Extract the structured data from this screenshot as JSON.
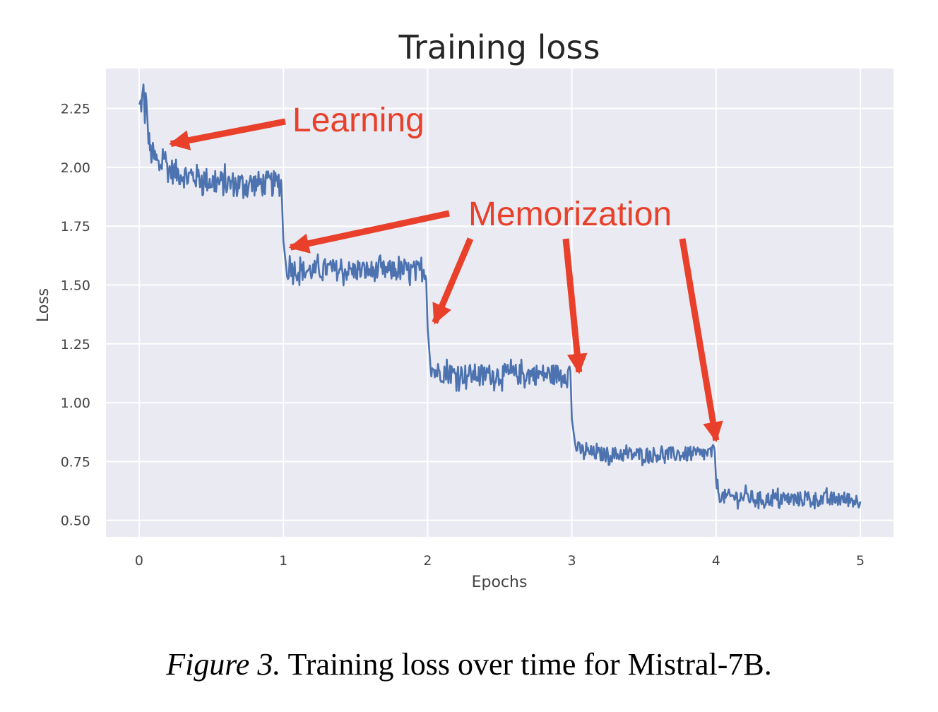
{
  "chart_data": {
    "type": "line",
    "title": "Training loss",
    "xlabel": "Epochs",
    "ylabel": "Loss",
    "xlim": [
      -0.23,
      5.23
    ],
    "ylim": [
      0.43,
      2.42
    ],
    "xticks": [
      0,
      1,
      2,
      3,
      4,
      5
    ],
    "yticks": [
      0.5,
      0.75,
      1.0,
      1.25,
      1.5,
      1.75,
      2.0,
      2.25
    ],
    "xtick_labels": [
      "0",
      "1",
      "2",
      "3",
      "4",
      "5"
    ],
    "ytick_labels": [
      "0.50",
      "0.75",
      "1.00",
      "1.25",
      "1.50",
      "1.75",
      "2.00",
      "2.25"
    ],
    "grid": true,
    "series": [
      {
        "color": "#4c72b0",
        "points": [
          [
            0.0,
            2.25
          ],
          [
            0.02,
            2.28
          ],
          [
            0.03,
            2.32
          ],
          [
            0.04,
            2.22
          ],
          [
            0.05,
            2.33
          ],
          [
            0.06,
            2.15
          ],
          [
            0.07,
            2.1
          ],
          [
            0.08,
            2.06
          ],
          [
            0.1,
            2.05
          ],
          [
            0.12,
            2.02
          ],
          [
            0.14,
            2.0
          ],
          [
            0.17,
            2.06
          ],
          [
            0.2,
            1.99
          ],
          [
            0.25,
            1.98
          ],
          [
            0.3,
            1.97
          ],
          [
            0.35,
            1.96
          ],
          [
            0.4,
            1.96
          ],
          [
            0.45,
            1.95
          ],
          [
            0.5,
            1.94
          ],
          [
            0.6,
            1.93
          ],
          [
            0.7,
            1.93
          ],
          [
            0.8,
            1.93
          ],
          [
            0.9,
            1.93
          ],
          [
            0.99,
            1.93
          ],
          [
            1.0,
            1.68
          ],
          [
            1.02,
            1.55
          ],
          [
            1.05,
            1.58
          ],
          [
            1.1,
            1.56
          ],
          [
            1.2,
            1.56
          ],
          [
            1.3,
            1.57
          ],
          [
            1.4,
            1.56
          ],
          [
            1.5,
            1.56
          ],
          [
            1.6,
            1.56
          ],
          [
            1.7,
            1.56
          ],
          [
            1.8,
            1.56
          ],
          [
            1.9,
            1.56
          ],
          [
            1.99,
            1.56
          ],
          [
            2.0,
            1.33
          ],
          [
            2.02,
            1.16
          ],
          [
            2.05,
            1.13
          ],
          [
            2.1,
            1.13
          ],
          [
            2.2,
            1.12
          ],
          [
            2.3,
            1.12
          ],
          [
            2.4,
            1.12
          ],
          [
            2.5,
            1.12
          ],
          [
            2.6,
            1.12
          ],
          [
            2.7,
            1.12
          ],
          [
            2.8,
            1.12
          ],
          [
            2.9,
            1.12
          ],
          [
            2.99,
            1.13
          ],
          [
            3.0,
            0.95
          ],
          [
            3.02,
            0.82
          ],
          [
            3.05,
            0.8
          ],
          [
            3.1,
            0.79
          ],
          [
            3.2,
            0.78
          ],
          [
            3.3,
            0.78
          ],
          [
            3.4,
            0.78
          ],
          [
            3.5,
            0.78
          ],
          [
            3.6,
            0.78
          ],
          [
            3.7,
            0.78
          ],
          [
            3.8,
            0.78
          ],
          [
            3.9,
            0.78
          ],
          [
            3.99,
            0.79
          ],
          [
            4.0,
            0.68
          ],
          [
            4.02,
            0.61
          ],
          [
            4.05,
            0.6
          ],
          [
            4.1,
            0.6
          ],
          [
            4.2,
            0.6
          ],
          [
            4.3,
            0.59
          ],
          [
            4.4,
            0.59
          ],
          [
            4.5,
            0.59
          ],
          [
            4.6,
            0.59
          ],
          [
            4.7,
            0.59
          ],
          [
            4.8,
            0.59
          ],
          [
            4.9,
            0.59
          ],
          [
            5.0,
            0.58
          ]
        ]
      }
    ],
    "annotations": [
      {
        "text": "Learning",
        "x": 0.22,
        "y": 2.1
      },
      {
        "text": "Memorization",
        "arrow_targets": [
          [
            1.05,
            1.66
          ],
          [
            2.05,
            1.34
          ],
          [
            3.05,
            1.13
          ],
          [
            4.0,
            0.84
          ]
        ]
      }
    ]
  },
  "caption": {
    "figure_label": "Figure 3.",
    "text": "Training loss over time for Mistral-7B."
  }
}
